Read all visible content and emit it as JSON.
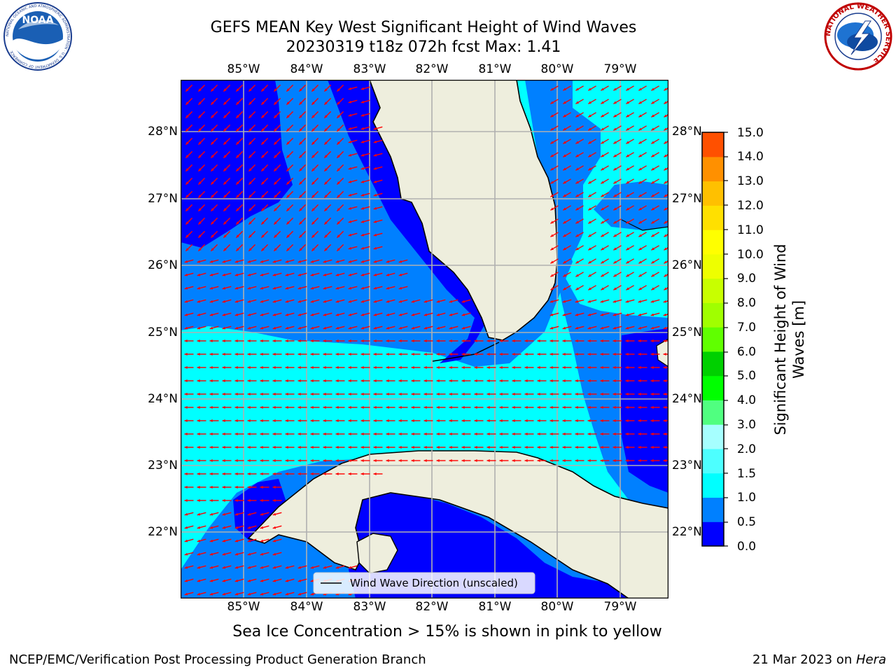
{
  "title": {
    "line1": "GEFS MEAN Key West Significant Height of Wind Waves",
    "line2": "20230319 t18z 072h fcst   Max: 1.41"
  },
  "map": {
    "lon_labels": [
      "85°W",
      "84°W",
      "83°W",
      "82°W",
      "81°W",
      "80°W",
      "79°W"
    ],
    "lat_labels": [
      "28°N",
      "27°N",
      "26°N",
      "25°N",
      "24°N",
      "23°N",
      "22°N"
    ],
    "legend_label": "Wind Wave Direction (unscaled)",
    "colors": {
      "land": "#eeeedd",
      "arrow": "#ff0000",
      "grid": "#b0b0b0",
      "coast": "#000000"
    }
  },
  "colorbar": {
    "label_line1": "Significant Height of Wind",
    "label_line2": "Waves [m]",
    "ticks": [
      "15.0",
      "14.0",
      "13.0",
      "12.0",
      "11.0",
      "10.0",
      "9.0",
      "8.0",
      "7.0",
      "6.0",
      "5.0",
      "4.0",
      "3.0",
      "2.0",
      "1.5",
      "1.0",
      "0.5",
      "0.0"
    ],
    "colors": [
      "#0000ff",
      "#0080ff",
      "#00ffff",
      "#4dffff",
      "#a6ffff",
      "#50ff80",
      "#00ff00",
      "#00d000",
      "#60ff00",
      "#a0ff00",
      "#c8ff00",
      "#eeff00",
      "#ffff00",
      "#ffe000",
      "#ffc000",
      "#ff9000",
      "#ff5000",
      "#ff2000",
      "#ff0000"
    ]
  },
  "caption": "Sea Ice Concentration > 15% is shown in pink to yellow",
  "footer": {
    "left": "NCEP/EMC/Verification Post Processing Product Generation Branch",
    "date": "21 Mar 2023 on ",
    "host": "Hera"
  },
  "logos": {
    "noaa_text": "NOAA",
    "noaa_ring": "NATIONAL OCEANIC AND ATMOSPHERIC ADMINISTRATION · U.S. DEPARTMENT OF COMMERCE",
    "nws_ring": "NATIONAL WEATHER SERVICE"
  }
}
